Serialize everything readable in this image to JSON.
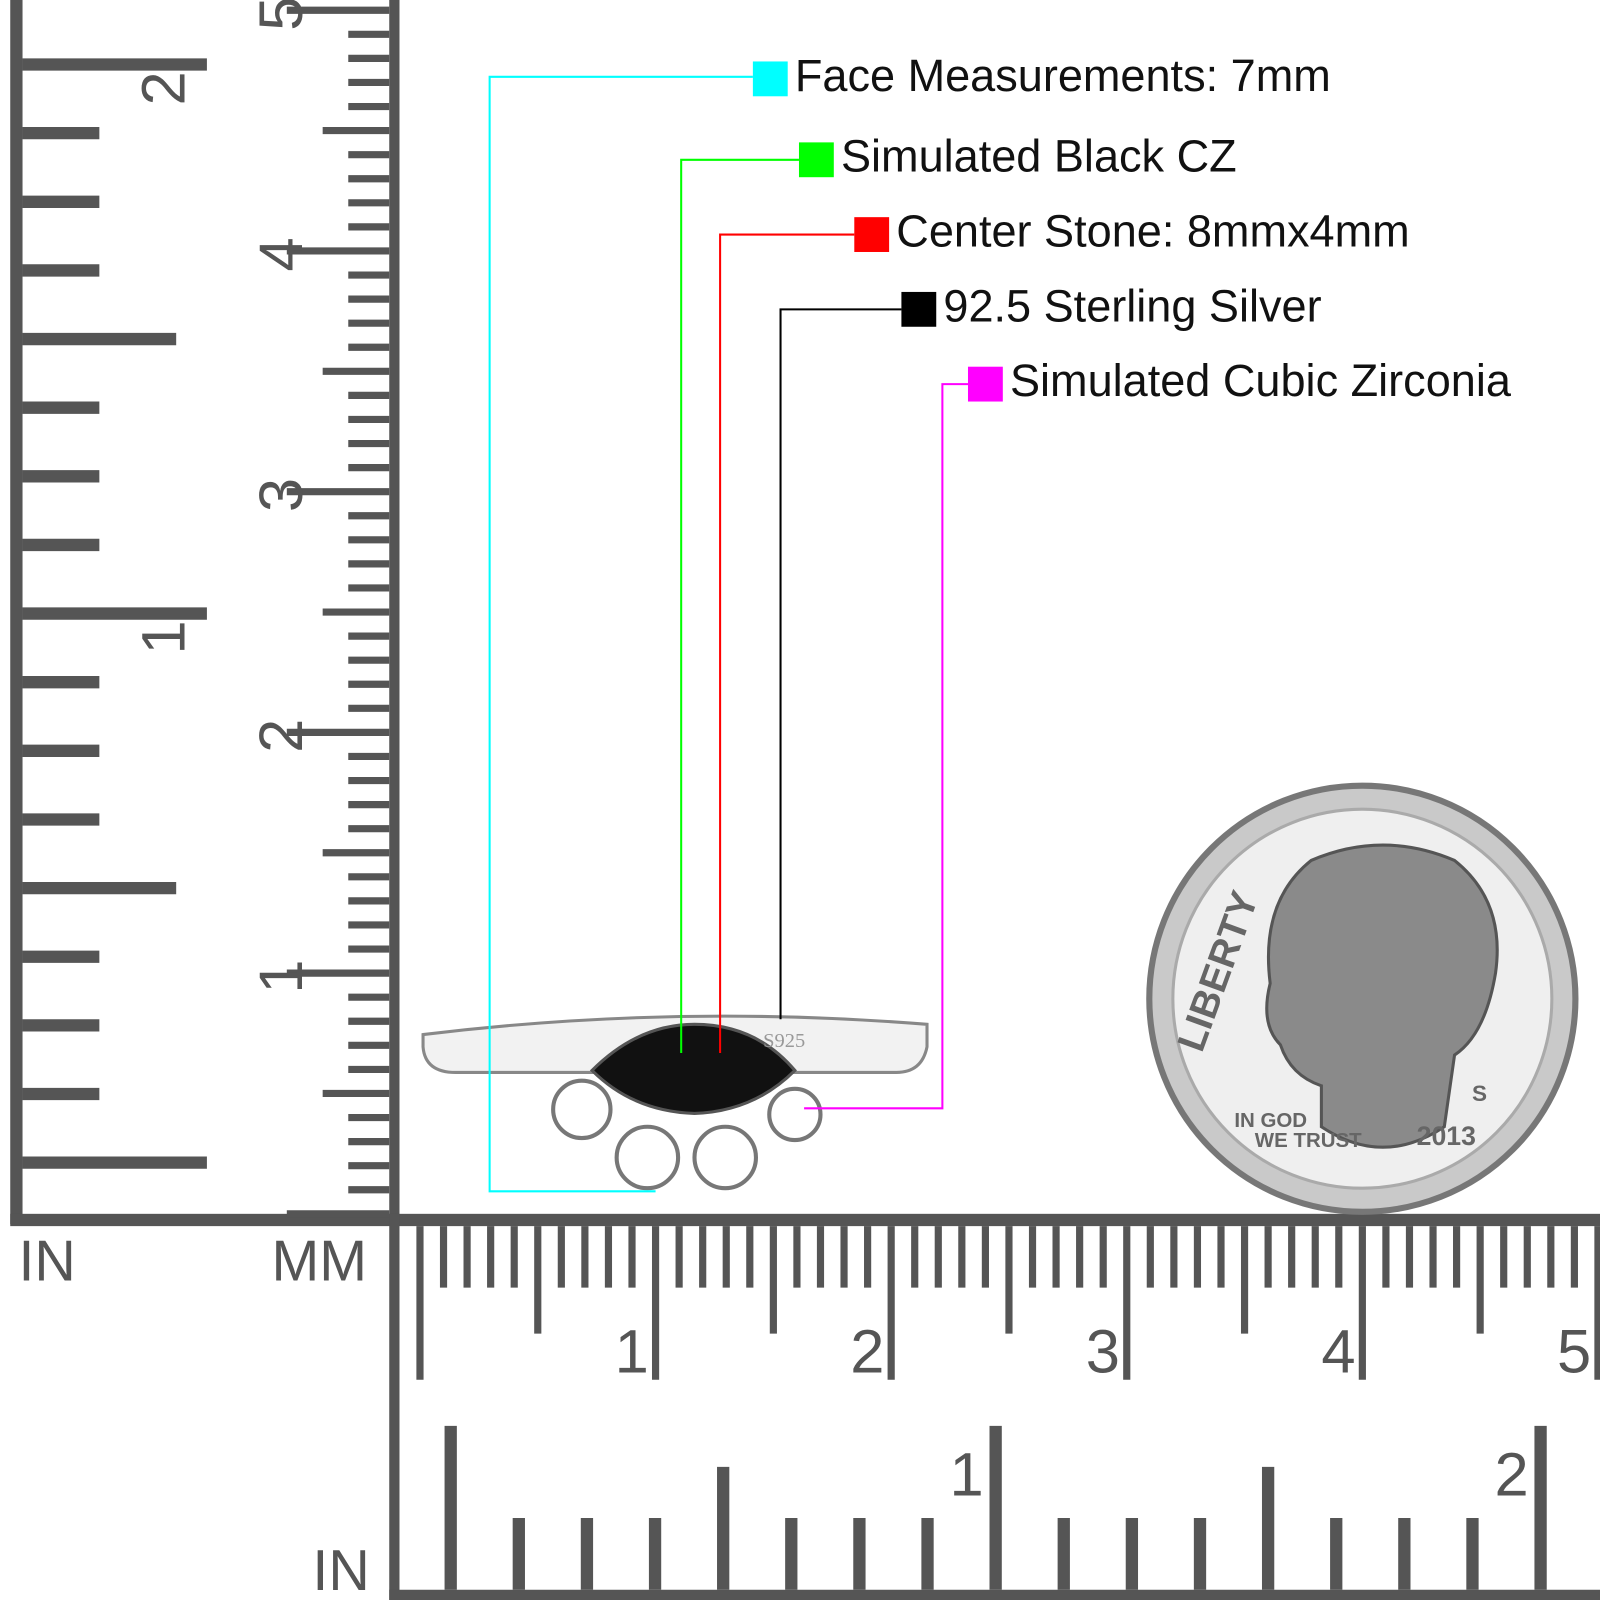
{
  "legend": [
    {
      "label": "Face Measurements: 7mm",
      "color": "#00ffff"
    },
    {
      "label": "Simulated Black CZ",
      "color": "#00ff00"
    },
    {
      "label": "Center Stone: 8mmx4mm",
      "color": "#ff0000"
    },
    {
      "label": "92.5 Sterling Silver",
      "color": "#000000"
    },
    {
      "label": "Simulated Cubic Zirconia",
      "color": "#ff00ff"
    }
  ],
  "rulers": {
    "left_in": {
      "unit": "IN",
      "labels": [
        "1",
        "2"
      ]
    },
    "left_mm": {
      "unit": "MM",
      "labels": [
        "1",
        "2",
        "3",
        "4",
        "5"
      ]
    },
    "bottom_mm": {
      "labels": [
        "1",
        "2",
        "3",
        "4",
        "5"
      ]
    },
    "bottom_in": {
      "unit": "IN",
      "labels": [
        "1",
        "2"
      ]
    }
  },
  "ring": {
    "stamp": "S925"
  },
  "coin": {
    "liberty": "LIBERTY",
    "motto1": "IN GOD",
    "motto2": "WE TRUST",
    "mint": "S",
    "year": "2013"
  }
}
